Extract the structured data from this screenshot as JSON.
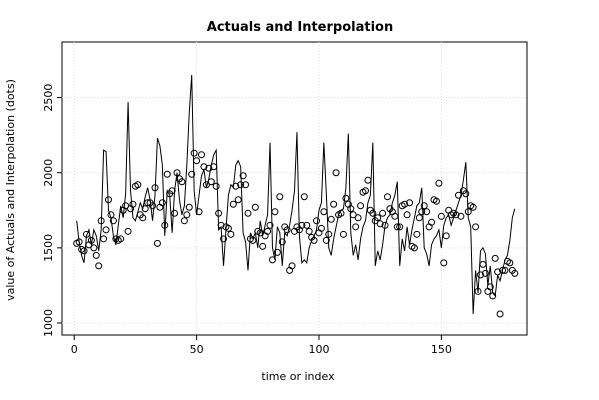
{
  "chart_data": {
    "type": "line",
    "title": "Actuals and Interpolation",
    "x_label": "time or index",
    "y_label": "value of Actuals and Interpolation (dots)",
    "xlim": [
      -5,
      185
    ],
    "ylim": [
      920,
      2870
    ],
    "xticks": [
      0,
      50,
      100,
      150
    ],
    "yticks": [
      1000,
      1500,
      2000,
      2500
    ],
    "grid": true,
    "x": [
      1,
      2,
      3,
      4,
      5,
      6,
      7,
      8,
      9,
      10,
      11,
      12,
      13,
      14,
      15,
      16,
      17,
      18,
      19,
      20,
      21,
      22,
      23,
      24,
      25,
      26,
      27,
      28,
      29,
      30,
      31,
      32,
      33,
      34,
      35,
      36,
      37,
      38,
      39,
      40,
      41,
      42,
      43,
      44,
      45,
      46,
      47,
      48,
      49,
      50,
      51,
      52,
      53,
      54,
      55,
      56,
      57,
      58,
      59,
      60,
      61,
      62,
      63,
      64,
      65,
      66,
      67,
      68,
      69,
      70,
      71,
      72,
      73,
      74,
      75,
      76,
      77,
      78,
      79,
      80,
      81,
      82,
      83,
      84,
      85,
      86,
      87,
      88,
      89,
      90,
      91,
      92,
      93,
      94,
      95,
      96,
      97,
      98,
      99,
      100,
      101,
      102,
      103,
      104,
      105,
      106,
      107,
      108,
      109,
      110,
      111,
      112,
      113,
      114,
      115,
      116,
      117,
      118,
      119,
      120,
      121,
      122,
      123,
      124,
      125,
      126,
      127,
      128,
      129,
      130,
      131,
      132,
      133,
      134,
      135,
      136,
      137,
      138,
      139,
      140,
      141,
      142,
      143,
      144,
      145,
      146,
      147,
      148,
      149,
      150,
      151,
      152,
      153,
      154,
      155,
      156,
      157,
      158,
      159,
      160,
      161,
      162,
      163,
      164,
      165,
      166,
      167,
      168,
      169,
      170,
      171,
      172,
      173,
      174,
      175,
      176,
      177,
      178,
      179,
      180
    ],
    "series": [
      {
        "type": "line",
        "color": "#000000",
        "values": [
          1680,
          1540,
          1450,
          1400,
          1580,
          1620,
          1520,
          1620,
          1580,
          1480,
          1620,
          2150,
          2140,
          1750,
          1700,
          1580,
          1520,
          1650,
          1780,
          1700,
          1860,
          2470,
          1880,
          1700,
          1680,
          1740,
          1800,
          1760,
          1840,
          1900,
          1820,
          1680,
          1850,
          2230,
          2180,
          2050,
          1580,
          1880,
          1850,
          1600,
          1880,
          2000,
          1820,
          1720,
          1780,
          2050,
          2400,
          2650,
          1880,
          1720,
          1850,
          1980,
          2020,
          1900,
          1960,
          2050,
          2120,
          2150,
          1620,
          1640,
          1380,
          1620,
          1850,
          1920,
          1900,
          2050,
          2080,
          2040,
          1600,
          1540,
          1350,
          1600,
          1560,
          1600,
          1500,
          1680,
          1580,
          1650,
          1720,
          2200,
          1500,
          1420,
          1640,
          1600,
          1380,
          1600,
          1580,
          1650,
          1750,
          1880,
          2270,
          1580,
          1400,
          1420,
          1400,
          1500,
          1550,
          1580,
          1620,
          1750,
          1800,
          2200,
          1860,
          1500,
          1450,
          1560,
          1640,
          1720,
          1750,
          1760,
          1900,
          2260,
          1600,
          1450,
          1520,
          1420,
          1560,
          1640,
          1680,
          1800,
          1850,
          2200,
          1380,
          1480,
          1420,
          1520,
          1650,
          1700,
          1720,
          1800,
          1850,
          1940,
          1380,
          1560,
          1480,
          1640,
          1520,
          1620,
          1700,
          1780,
          1800,
          1900,
          1500,
          1460,
          1380,
          1520,
          1560,
          1580,
          1620,
          1500,
          1650,
          1700,
          1720,
          1650,
          1700,
          1750,
          1800,
          1850,
          1950,
          2070,
          1700,
          1640,
          1060,
          1350,
          1200,
          1480,
          1500,
          1460,
          1250,
          1380,
          1200,
          1180,
          1320,
          1280,
          1350,
          1420,
          1450,
          1550,
          1700,
          1760
        ]
      },
      {
        "type": "scatter",
        "color": "#000000",
        "values": [
          1530,
          1540,
          1490,
          1480,
          1590,
          1520,
          1550,
          1500,
          1450,
          1380,
          1680,
          1560,
          1620,
          1820,
          1720,
          1680,
          1560,
          1550,
          1560,
          1750,
          1780,
          1610,
          1760,
          1790,
          1910,
          1920,
          1720,
          1700,
          1760,
          1800,
          1800,
          1780,
          1900,
          1530,
          1770,
          1800,
          1650,
          1990,
          1860,
          1880,
          1730,
          2000,
          1960,
          1940,
          1680,
          1720,
          1770,
          1990,
          2130,
          2080,
          1740,
          2120,
          2040,
          1920,
          2030,
          1940,
          2040,
          1910,
          1730,
          1650,
          1560,
          1640,
          1630,
          1590,
          1790,
          1910,
          1820,
          1920,
          1980,
          1920,
          1730,
          1560,
          1550,
          1770,
          1610,
          1600,
          1510,
          1580,
          1610,
          1650,
          1420,
          1740,
          1470,
          1840,
          1540,
          1640,
          1620,
          1350,
          1380,
          1610,
          1640,
          1620,
          1650,
          1840,
          1650,
          1610,
          1570,
          1550,
          1680,
          1600,
          1630,
          1740,
          1550,
          1590,
          1690,
          1790,
          2000,
          1720,
          1730,
          1590,
          1830,
          1790,
          1760,
          1720,
          1640,
          1700,
          1780,
          1870,
          1880,
          1950,
          1750,
          1730,
          1680,
          1700,
          1660,
          1730,
          1650,
          1840,
          1760,
          1740,
          1710,
          1640,
          1640,
          1780,
          1790,
          1720,
          1800,
          1510,
          1500,
          1590,
          1700,
          1740,
          1780,
          1740,
          1640,
          1670,
          1820,
          1810,
          1930,
          1710,
          1400,
          1580,
          1750,
          1720,
          1730,
          1720,
          1850,
          1710,
          1880,
          1860,
          1740,
          1780,
          1770,
          1640,
          1210,
          1320,
          1390,
          1330,
          1210,
          1240,
          1180,
          1430,
          1340,
          1060,
          1350,
          1350,
          1410,
          1400,
          1350,
          1330
        ]
      }
    ]
  }
}
